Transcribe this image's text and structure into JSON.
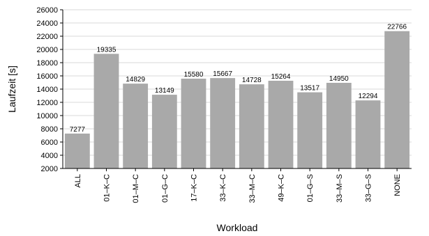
{
  "chart_data": {
    "type": "bar",
    "categories": [
      "ALL",
      "01–K–C",
      "01–M–C",
      "01–G–C",
      "17–K–C",
      "33–K–C",
      "33–M–C",
      "49–K–C",
      "01–G–S",
      "33–M–S",
      "33–G–S",
      "NONE"
    ],
    "values": [
      7277,
      19335,
      14829,
      13149,
      15580,
      15667,
      14728,
      15264,
      13517,
      14950,
      12294,
      22766
    ],
    "data_labels": [
      "7277",
      "19335",
      "14829",
      "13149",
      "15580",
      "15667",
      "14728",
      "15264",
      "13517",
      "14950",
      "12294",
      "22766"
    ],
    "xlabel": "Workload",
    "ylabel": "Laufzeit [s]",
    "ylim": [
      2000,
      26000
    ],
    "yticks": [
      2000,
      4000,
      6000,
      8000,
      10000,
      12000,
      14000,
      16000,
      18000,
      20000,
      22000,
      24000,
      26000
    ],
    "grid": true,
    "bar_color": "#a9a9a9",
    "grid_color": "#d9d9d9"
  }
}
